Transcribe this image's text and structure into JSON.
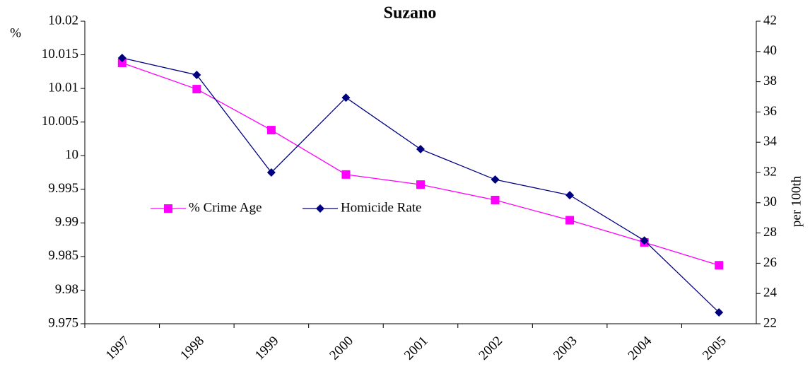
{
  "chart_data": {
    "type": "line",
    "title": "Suzano",
    "y_label": "%",
    "y2_label": "per 100th",
    "categories": [
      "1997",
      "1998",
      "1999",
      "2000",
      "2001",
      "2002",
      "2003",
      "2004",
      "2005"
    ],
    "series": [
      {
        "name": "% Crime Age",
        "color": "#ff00ff",
        "marker": "square",
        "values": [
          10.0138,
          10.0099,
          10.0038,
          9.9972,
          9.9957,
          9.9934,
          9.9904,
          9.9871,
          9.9837
        ]
      },
      {
        "name": "Homicide Rate",
        "color": "#000080",
        "marker": "diamond",
        "axis": "y2",
        "values": [
          39.57,
          38.45,
          32.0,
          36.95,
          33.54,
          31.53,
          30.5,
          27.5,
          22.75
        ]
      }
    ],
    "ylim": [
      9.975,
      10.02
    ],
    "yticks": [
      9.975,
      9.98,
      9.985,
      9.99,
      9.995,
      10,
      10.005,
      10.01,
      10.015,
      10.02
    ],
    "y2lim": [
      22,
      42
    ],
    "y2ticks": [
      22,
      24,
      26,
      28,
      30,
      32,
      34,
      36,
      38,
      40,
      42
    ],
    "grid": false,
    "legend": "inside-left"
  }
}
